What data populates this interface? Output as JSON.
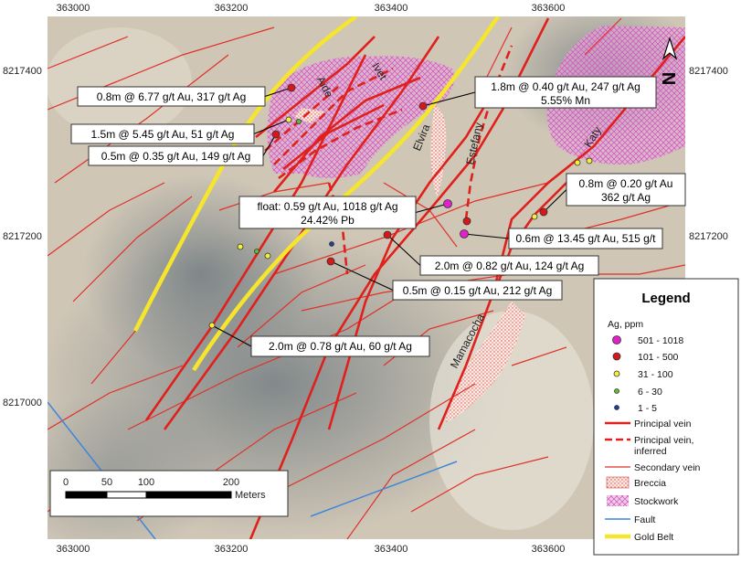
{
  "axes": {
    "x_top": [
      "363000",
      "363200",
      "363400",
      "363600"
    ],
    "x_bottom": [
      "363000",
      "363200",
      "363400",
      "363600"
    ],
    "y_left": [
      "8217400",
      "8217200",
      "8217000"
    ],
    "y_right": [
      "8217400",
      "8217200"
    ]
  },
  "north_arrow": "N",
  "vein_names": [
    "Aide",
    "Ivet",
    "Elvira",
    "Estefany",
    "Katy",
    "Mamacocha"
  ],
  "callouts": [
    {
      "lines": [
        "0.8m @ 6.77 g/t Au, 317 g/t Ag"
      ]
    },
    {
      "lines": [
        "1.5m @ 5.45 g/t Au, 51 g/t Ag"
      ]
    },
    {
      "lines": [
        "0.5m @ 0.35 g/t Au, 149 g/t Ag"
      ]
    },
    {
      "lines": [
        "1.8m @ 0.40 g/t Au, 247 g/t Ag",
        "5.55% Mn"
      ]
    },
    {
      "lines": [
        "float:  0.59 g/t Au, 1018 g/t Ag",
        "24.42% Pb"
      ]
    },
    {
      "lines": [
        "0.8m @ 0.20 g/t Au",
        "362 g/t Ag"
      ]
    },
    {
      "lines": [
        "0.6m @ 13.45 g/t Au, 515 g/t"
      ]
    },
    {
      "lines": [
        "2.0m @ 0.82 g/t Au, 124 g/t Ag"
      ]
    },
    {
      "lines": [
        "0.5m @ 0.15 g/t Au, 212 g/t Ag"
      ]
    },
    {
      "lines": [
        "2.0m @ 0.78 g/t Au, 60 g/t Ag"
      ]
    }
  ],
  "legend": {
    "title": "Legend",
    "subtitle": "Ag, ppm",
    "items": [
      {
        "lines": [
          "501 - 1018"
        ]
      },
      {
        "lines": [
          "101 - 500"
        ]
      },
      {
        "lines": [
          "31 - 100"
        ]
      },
      {
        "lines": [
          "6 - 30"
        ]
      },
      {
        "lines": [
          "1 - 5"
        ]
      },
      {
        "lines": [
          "Principal vein"
        ]
      },
      {
        "lines": [
          "Principal vein,",
          "inferred"
        ]
      },
      {
        "lines": [
          "Secondary vein"
        ]
      },
      {
        "lines": [
          "Breccia"
        ]
      },
      {
        "lines": [
          "Stockwork"
        ]
      },
      {
        "lines": [
          "Fault"
        ]
      },
      {
        "lines": [
          "Gold Belt"
        ]
      }
    ]
  },
  "scale_bar": {
    "ticks": [
      "0",
      "50",
      "100",
      "200"
    ],
    "unit": "Meters"
  }
}
